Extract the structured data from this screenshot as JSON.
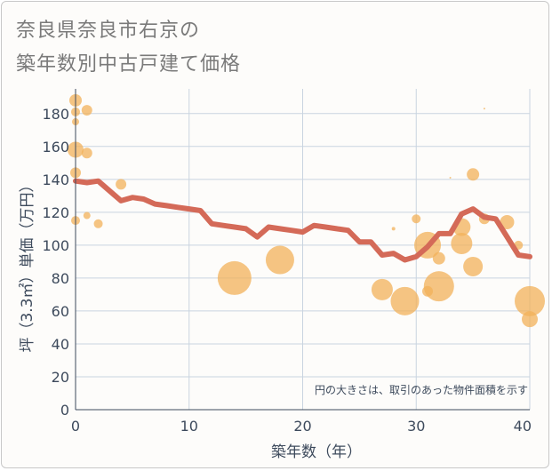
{
  "chart_data": {
    "type": "scatter",
    "title_line1": "奈良県奈良市右京の",
    "title_line2": "築年数別中古戸建て価格",
    "xlabel": "築年数（年）",
    "ylabel": "坪（3.3㎡）単価（万円）",
    "xlim": [
      0,
      40
    ],
    "ylim": [
      0,
      195
    ],
    "xticks": [
      0,
      10,
      20,
      30,
      40
    ],
    "yticks": [
      0,
      20,
      40,
      60,
      80,
      100,
      120,
      140,
      160,
      180
    ],
    "note": "円の大きさは、取引のあった物件面積を示す",
    "colors": {
      "line": "#d46a58",
      "bubble": "#f2b25a",
      "grid": "#c9d4e0"
    },
    "trend_line": {
      "x": [
        0,
        1,
        2,
        3,
        4,
        5,
        6,
        7,
        8,
        9,
        10,
        11,
        12,
        13,
        14,
        15,
        16,
        17,
        18,
        19,
        20,
        21,
        22,
        23,
        24,
        25,
        26,
        27,
        28,
        29,
        30,
        31,
        32,
        33,
        34,
        35,
        36,
        37,
        38,
        39,
        40
      ],
      "y": [
        139,
        138,
        139,
        133,
        127,
        129,
        128,
        125,
        124,
        123,
        122,
        121,
        113,
        112,
        111,
        110,
        105,
        111,
        110,
        109,
        108,
        112,
        111,
        110,
        109,
        102,
        102,
        94,
        95,
        91,
        93,
        99,
        107,
        107,
        119,
        122,
        117,
        116,
        105,
        94,
        93
      ]
    },
    "bubbles": [
      {
        "x": 0,
        "y": 188,
        "s": 7
      },
      {
        "x": 0,
        "y": 181,
        "s": 5
      },
      {
        "x": 0,
        "y": 175,
        "s": 4
      },
      {
        "x": 1,
        "y": 182,
        "s": 6
      },
      {
        "x": 0,
        "y": 158,
        "s": 9
      },
      {
        "x": 1,
        "y": 156,
        "s": 6
      },
      {
        "x": 0,
        "y": 144,
        "s": 6
      },
      {
        "x": 1,
        "y": 118,
        "s": 4
      },
      {
        "x": 0,
        "y": 115,
        "s": 5
      },
      {
        "x": 2,
        "y": 113,
        "s": 5
      },
      {
        "x": 4,
        "y": 137,
        "s": 6
      },
      {
        "x": 14,
        "y": 80,
        "s": 19
      },
      {
        "x": 18,
        "y": 91,
        "s": 16
      },
      {
        "x": 27,
        "y": 73,
        "s": 12
      },
      {
        "x": 28,
        "y": 110,
        "s": 2
      },
      {
        "x": 29,
        "y": 66,
        "s": 16
      },
      {
        "x": 30,
        "y": 116,
        "s": 5
      },
      {
        "x": 31,
        "y": 100,
        "s": 15
      },
      {
        "x": 31,
        "y": 72,
        "s": 6
      },
      {
        "x": 32,
        "y": 92,
        "s": 7
      },
      {
        "x": 32,
        "y": 75,
        "s": 17
      },
      {
        "x": 33,
        "y": 141,
        "s": 1
      },
      {
        "x": 34,
        "y": 111,
        "s": 10
      },
      {
        "x": 34,
        "y": 101,
        "s": 12
      },
      {
        "x": 35,
        "y": 143,
        "s": 7
      },
      {
        "x": 35,
        "y": 87,
        "s": 11
      },
      {
        "x": 36,
        "y": 116,
        "s": 6
      },
      {
        "x": 36,
        "y": 183,
        "s": 1
      },
      {
        "x": 38,
        "y": 114,
        "s": 8
      },
      {
        "x": 39,
        "y": 100,
        "s": 5
      },
      {
        "x": 40,
        "y": 66,
        "s": 17
      },
      {
        "x": 40,
        "y": 55,
        "s": 9
      }
    ]
  }
}
